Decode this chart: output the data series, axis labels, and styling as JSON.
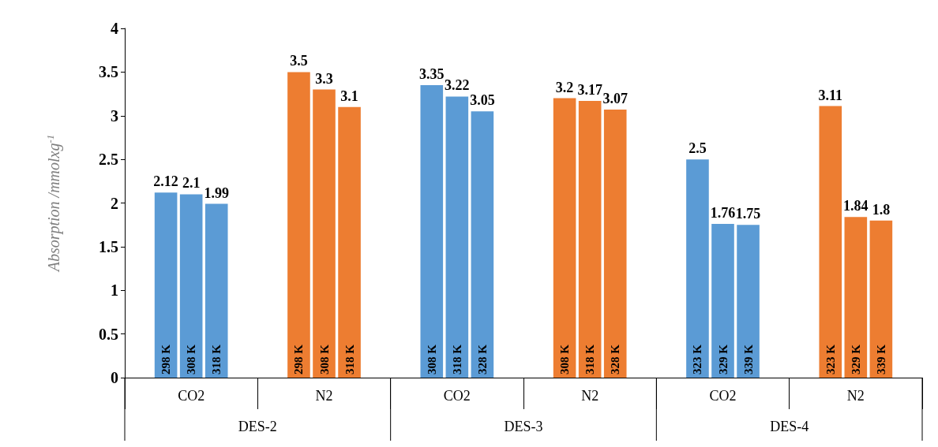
{
  "chart_data": {
    "type": "bar",
    "ylabel": "Absorption /mmolxg$^{-1}$",
    "categories": [
      "CO2",
      "N2",
      "CO2",
      "N2",
      "CO2",
      "N2"
    ],
    "series": [
      {
        "values": [
          2.12,
          3.5,
          3.35,
          3.2,
          2.5,
          3.11
        ],
        "colors": [
          "#5b9bd5",
          "#ed7d31",
          "#5b9bd5",
          "#ed7d31",
          "#5b9bd5",
          "#ed7d31"
        ]
      },
      {
        "values": [
          2.1,
          3.3,
          3.22,
          3.17,
          1.76,
          1.84
        ],
        "colors": [
          "#5b9bd5",
          "#ed7d31",
          "#5b9bd5",
          "#ed7d31",
          "#5b9bd5",
          "#ed7d31"
        ]
      },
      {
        "values": [
          1.99,
          3.1,
          3.05,
          3.07,
          1.75,
          1.8
        ],
        "colors": [
          "#5b9bd5",
          "#ed7d31",
          "#5b9bd5",
          "#ed7d31",
          "#5b9bd5",
          "#ed7d31"
        ]
      }
    ],
    "data_labels": true,
    "ylim": [
      0,
      4
    ],
    "yticks": [
      0,
      0.5,
      1,
      1.5,
      2,
      2.5,
      3,
      3.5,
      4
    ],
    "grid": false,
    "annotations": [
      "298 K",
      "308 K",
      "318 K",
      "298 K",
      "308 K",
      "318 K",
      "308 K",
      "318 K",
      "328 K",
      "308 K",
      "318 K",
      "328 K",
      "323 K",
      "329 K",
      "339 K",
      "323 K",
      "329 K",
      "339 K",
      "DES-2",
      "DES-3",
      "DES-4"
    ]
  }
}
